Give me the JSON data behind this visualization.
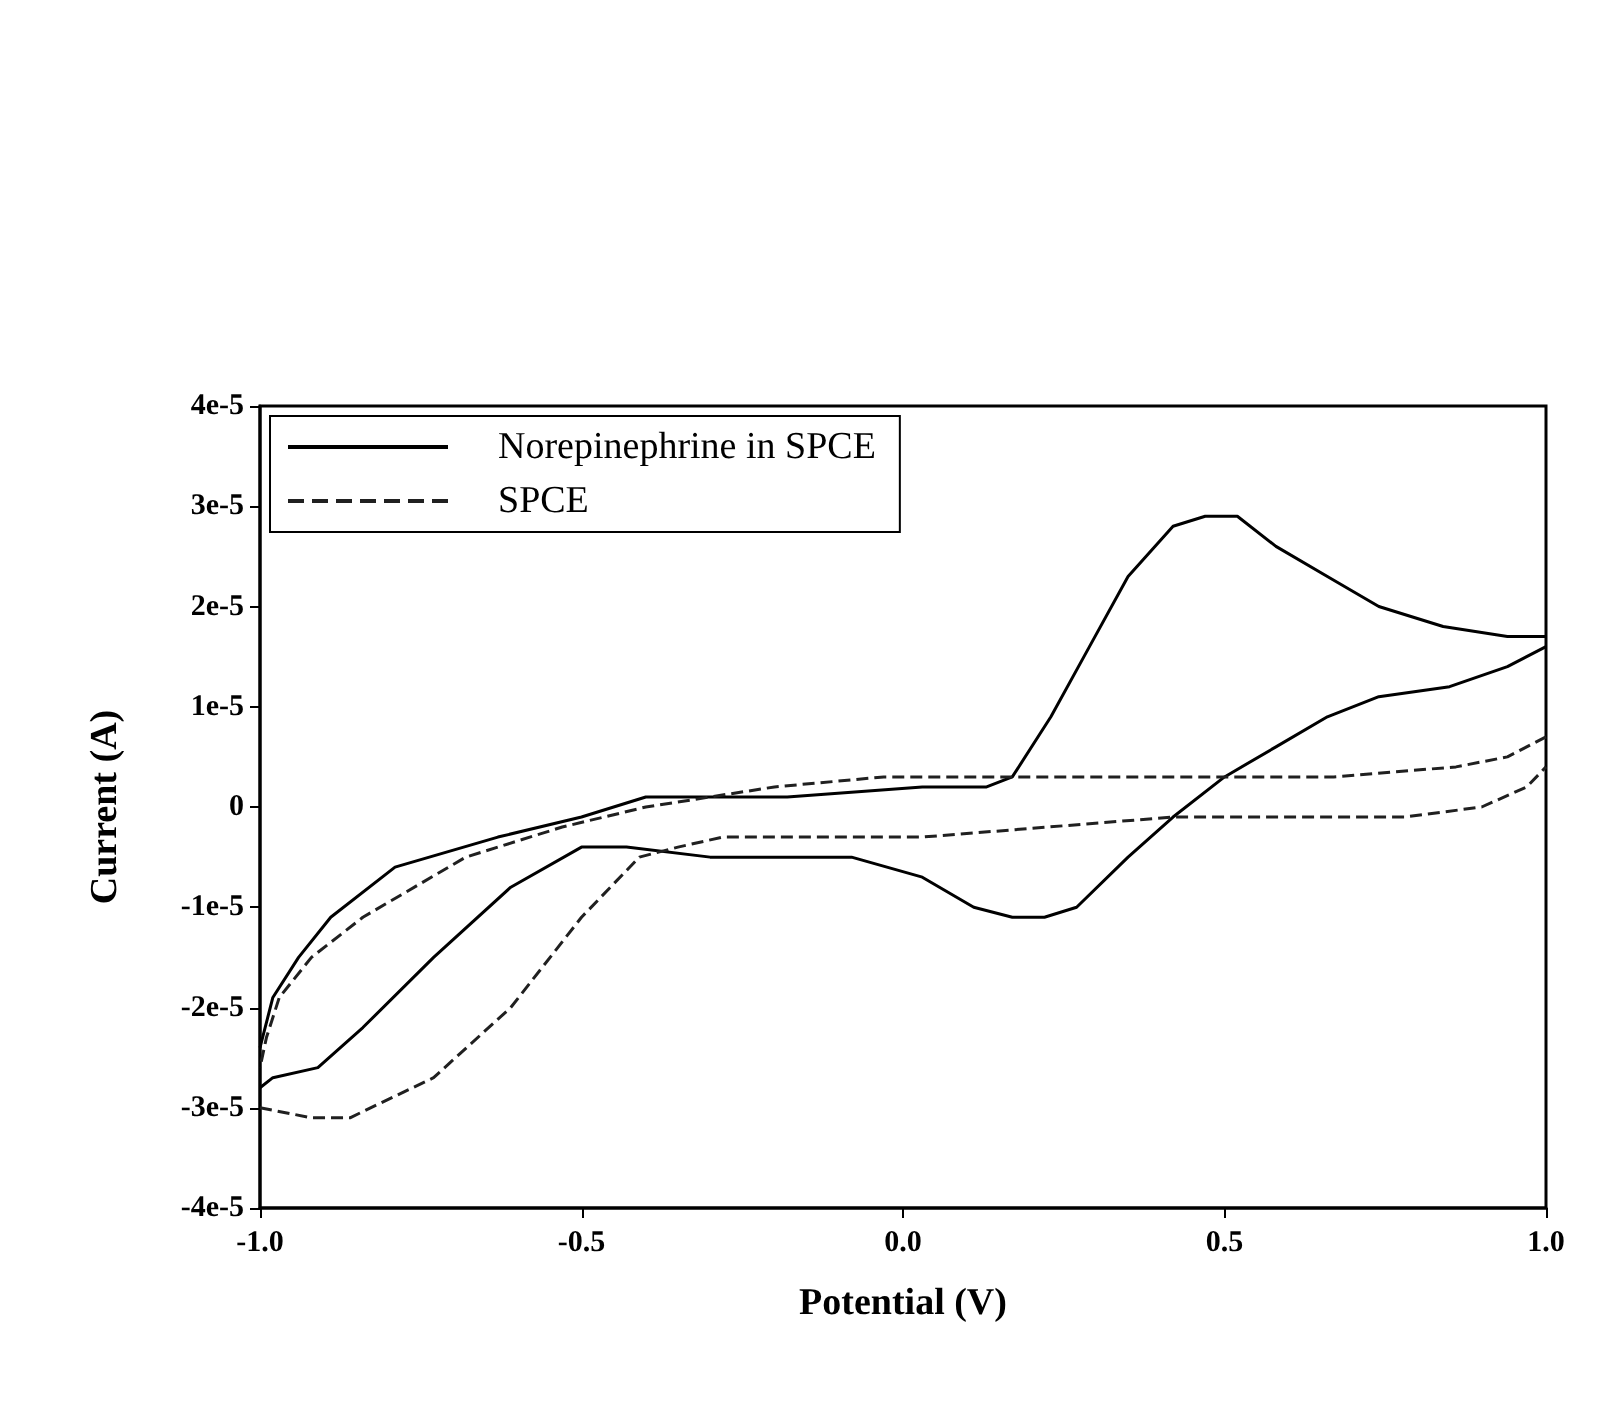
{
  "chart_data": {
    "type": "line",
    "xlabel": "Potential (V)",
    "ylabel": "Current (A)",
    "xlim": [
      -1.0,
      1.0
    ],
    "xticks": [
      {
        "value": -1.0,
        "label": "-1.0"
      },
      {
        "value": -0.5,
        "label": "-0.5"
      },
      {
        "value": 0.0,
        "label": "0.0"
      },
      {
        "value": 0.5,
        "label": "0.5"
      },
      {
        "value": 1.0,
        "label": "1.0"
      }
    ],
    "ylim": [
      -4e-05,
      4e-05
    ],
    "yticks": [
      {
        "value": -4e-05,
        "label": "-4e-5"
      },
      {
        "value": -3e-05,
        "label": "-3e-5"
      },
      {
        "value": -2e-05,
        "label": "-2e-5"
      },
      {
        "value": -1e-05,
        "label": "-1e-5"
      },
      {
        "value": 0,
        "label": "0"
      },
      {
        "value": 1e-05,
        "label": "1e-5"
      },
      {
        "value": 2e-05,
        "label": "2e-5"
      },
      {
        "value": 3e-05,
        "label": "3e-5"
      },
      {
        "value": 4e-05,
        "label": "4e-5"
      }
    ],
    "grid": false,
    "legend": "top left",
    "marker": "none",
    "series": [
      {
        "name": "Norepinephrine in SPCE",
        "color": "#000000",
        "line_style": "solid",
        "x": [
          -1.0,
          -0.98,
          -0.94,
          -0.89,
          -0.79,
          -0.63,
          -0.5,
          -0.4,
          -0.18,
          0.03,
          0.13,
          0.17,
          0.23,
          0.29,
          0.35,
          0.42,
          0.47,
          0.52,
          0.58,
          0.66,
          0.74,
          0.84,
          0.94,
          1.0
        ],
        "values": [
          -2.4e-05,
          -1.9e-05,
          -1.5e-05,
          -1.1e-05,
          -6e-06,
          -3e-06,
          -1e-06,
          1e-06,
          1e-06,
          2e-06,
          2e-06,
          3e-06,
          9e-06,
          1.6e-05,
          2.3e-05,
          2.8e-05,
          2.9e-05,
          2.9e-05,
          2.6e-05,
          2.3e-05,
          2e-05,
          1.8e-05,
          1.7e-05,
          1.7e-05
        ]
      },
      {
        "color": "#000000",
        "line_style": "solid",
        "x": [
          1.0,
          0.94,
          0.85,
          0.74,
          0.66,
          0.58,
          0.5,
          0.42,
          0.35,
          0.27,
          0.22,
          0.17,
          0.11,
          0.03,
          -0.08,
          -0.2,
          -0.3,
          -0.43,
          -0.5,
          -0.61,
          -0.73,
          -0.84,
          -0.91,
          -0.98,
          -1.0
        ],
        "values": [
          1.6e-05,
          1.4e-05,
          1.2e-05,
          1.1e-05,
          9e-06,
          6e-06,
          3e-06,
          -1e-06,
          -5e-06,
          -1e-05,
          -1.1e-05,
          -1.1e-05,
          -1e-05,
          -7e-06,
          -5e-06,
          -5e-06,
          -5e-06,
          -4e-06,
          -4e-06,
          -8e-06,
          -1.5e-05,
          -2.2e-05,
          -2.6e-05,
          -2.7e-05,
          -2.8e-05
        ]
      },
      {
        "name": "SPCE",
        "color": "#202020",
        "line_style": "dashed",
        "x": [
          -1.0,
          -0.92,
          -0.86,
          -0.73,
          -0.61,
          -0.5,
          -0.41,
          -0.35,
          -0.28,
          0.03,
          0.42,
          0.78,
          0.9,
          0.97,
          1.0
        ],
        "values": [
          -3e-05,
          -3.1e-05,
          -3.1e-05,
          -2.7e-05,
          -2e-05,
          -1.1e-05,
          -5e-06,
          -4e-06,
          -3e-06,
          -3e-06,
          -1e-06,
          -1e-06,
          0.0,
          2e-06,
          4e-06
        ]
      },
      {
        "color": "#202020",
        "line_style": "dashed",
        "x": [
          1.0,
          0.94,
          0.86,
          0.67,
          0.27,
          -0.03,
          -0.2,
          -0.4,
          -0.53,
          -0.68,
          -0.84,
          -0.92,
          -0.97,
          -0.99,
          -1.0
        ],
        "values": [
          7e-06,
          5e-06,
          4e-06,
          3e-06,
          3e-06,
          3e-06,
          2e-06,
          0.0,
          -2e-06,
          -5e-06,
          -1.1e-05,
          -1.5e-05,
          -1.9e-05,
          -2.3e-05,
          -2.6e-05
        ]
      }
    ]
  }
}
